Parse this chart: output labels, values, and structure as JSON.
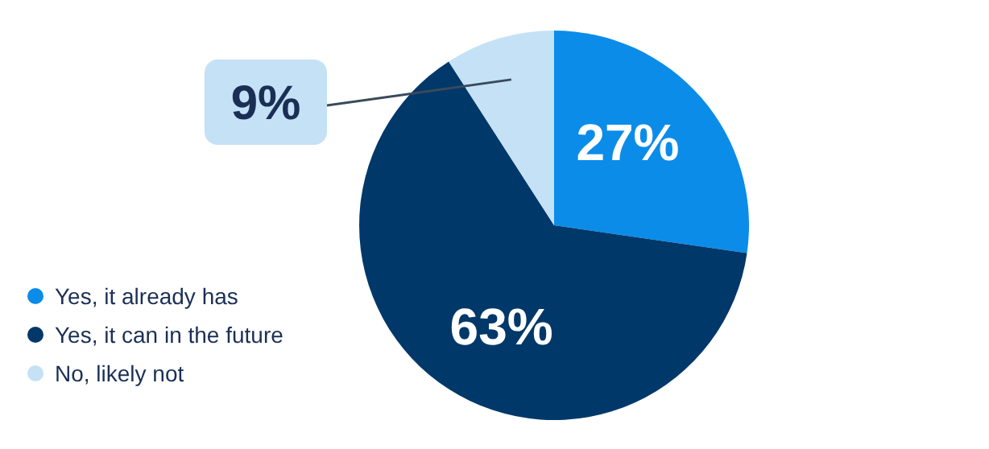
{
  "chart_data": {
    "type": "pie",
    "categories": [
      "Yes, it already has",
      "Yes, it can in the future",
      "No, likely not"
    ],
    "values": [
      27,
      63,
      9
    ],
    "colors": [
      "#0b8ce9",
      "#00386a",
      "#c4e1f6"
    ],
    "value_labels": [
      "27%",
      "63%",
      "9%"
    ],
    "legend": "bottom left"
  }
}
